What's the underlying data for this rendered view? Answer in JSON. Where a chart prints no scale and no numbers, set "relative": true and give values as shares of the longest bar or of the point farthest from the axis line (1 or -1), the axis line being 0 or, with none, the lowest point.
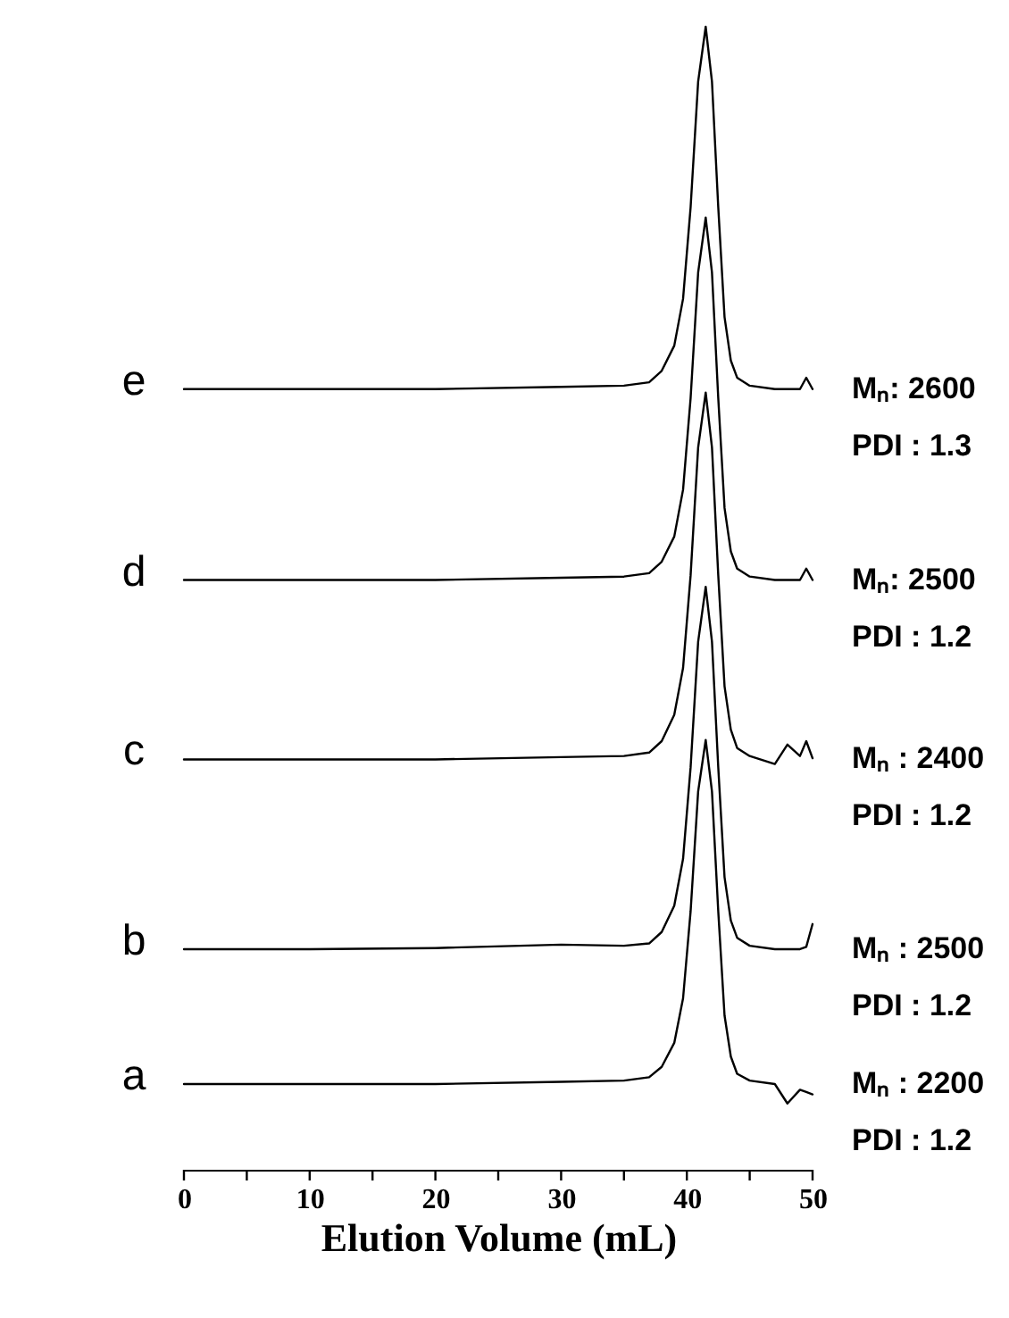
{
  "chart_data": {
    "type": "line",
    "relative": true,
    "xlabel": "Elution Volume (mL)",
    "xlim": [
      0,
      50
    ],
    "xticks": [
      0,
      {
        "value": 5,
        "label": null
      },
      10,
      {
        "value": 15,
        "label": null
      },
      20,
      {
        "value": 25,
        "label": null
      },
      30,
      {
        "value": 35,
        "label": null
      },
      40,
      {
        "value": 45,
        "label": null
      },
      50
    ],
    "x": [
      0,
      10,
      20,
      30,
      35,
      37,
      38,
      39,
      39.7,
      40.3,
      40.9,
      41.5,
      42,
      42.5,
      43,
      43.5,
      44,
      45,
      47,
      48,
      49,
      49.5,
      50
    ],
    "series": [
      {
        "name": "a",
        "color": "#000000",
        "values": [
          0.075,
          0.075,
          0.075,
          0.077,
          0.078,
          0.081,
          0.09,
          0.111,
          0.15,
          0.226,
          0.331,
          0.376,
          0.331,
          0.226,
          0.135,
          0.099,
          0.084,
          0.078,
          0.075,
          0.058,
          0.07,
          0.068,
          0.066
        ]
      },
      {
        "name": "b",
        "color": "#000000",
        "values": [
          0.193,
          0.193,
          0.194,
          0.197,
          0.196,
          0.198,
          0.208,
          0.231,
          0.272,
          0.352,
          0.462,
          0.51,
          0.462,
          0.352,
          0.256,
          0.218,
          0.203,
          0.196,
          0.193,
          0.193,
          0.193,
          0.195,
          0.215
        ]
      },
      {
        "name": "c",
        "color": "#000000",
        "values": [
          0.359,
          0.359,
          0.359,
          0.361,
          0.362,
          0.365,
          0.375,
          0.398,
          0.439,
          0.52,
          0.632,
          0.68,
          0.632,
          0.52,
          0.423,
          0.385,
          0.369,
          0.362,
          0.355,
          0.372,
          0.362,
          0.375,
          0.36
        ]
      },
      {
        "name": "d",
        "color": "#000000",
        "values": [
          0.516,
          0.516,
          0.516,
          0.518,
          0.519,
          0.522,
          0.532,
          0.554,
          0.595,
          0.675,
          0.785,
          0.833,
          0.785,
          0.675,
          0.579,
          0.541,
          0.526,
          0.519,
          0.516,
          0.516,
          0.516,
          0.526,
          0.516
        ]
      },
      {
        "name": "e",
        "color": "#000000",
        "values": [
          0.683,
          0.683,
          0.683,
          0.685,
          0.686,
          0.689,
          0.699,
          0.721,
          0.762,
          0.842,
          0.952,
          1.0,
          0.952,
          0.842,
          0.746,
          0.708,
          0.693,
          0.686,
          0.683,
          0.683,
          0.683,
          0.693,
          0.683
        ]
      }
    ],
    "annotations": [
      "Mₙ : 2200\nPDI : 1.2",
      "Mₙ : 2500\nPDI : 1.2",
      "Mₙ :  2400\nPDI : 1.2",
      "Mₙ:  2500\nPDI : 1.2",
      "Mₙ: 2600\nPDI : 1.3"
    ],
    "grid": false,
    "legend": false,
    "line_style": "solid",
    "marker": "none"
  }
}
